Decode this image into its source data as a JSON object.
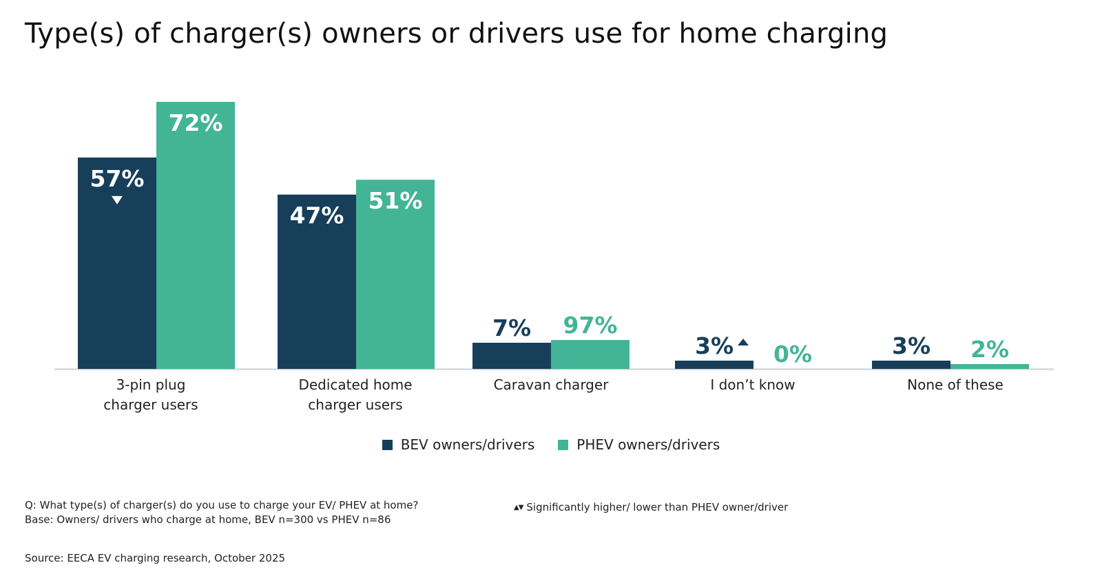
{
  "chart_data": {
    "type": "bar",
    "title": "Type(s) of charger(s) owners or drivers use for home charging",
    "categories": [
      [
        "3-pin plug",
        "charger users"
      ],
      [
        "Dedicated home",
        "charger users"
      ],
      [
        "Caravan charger"
      ],
      [
        "I don’t know"
      ],
      [
        "None of these"
      ]
    ],
    "series": [
      {
        "name": "BEV owners/drivers",
        "color": "#173f5a",
        "values": [
          57,
          47,
          7,
          3,
          3
        ],
        "labels": [
          "57%",
          "47%",
          "7%",
          "3%",
          "3%"
        ],
        "markers": [
          "down",
          "",
          "",
          "up",
          ""
        ]
      },
      {
        "name": "PHEV owners/drivers",
        "color": "#43b596",
        "values": [
          72,
          51,
          97,
          0,
          2
        ],
        "labels": [
          "72%",
          "51%",
          "97%",
          "0%",
          "2%"
        ],
        "markers": [
          "",
          "",
          "",
          "",
          ""
        ]
      }
    ],
    "grid": false,
    "legend_position": "bottom-center",
    "baseline_color": "#c8d0d4"
  },
  "notes": {
    "question": "Q: What type(s) of charger(s) do you use to charge your EV/ PHEV at home?",
    "base": "Base: Owners/ drivers who charge at home, BEV n=300 vs PHEV n=86",
    "significance_icons": "▲▼",
    "significance": "Significantly higher/ lower than PHEV owner/driver",
    "source": "Source: EECA EV charging research, October 2025"
  }
}
